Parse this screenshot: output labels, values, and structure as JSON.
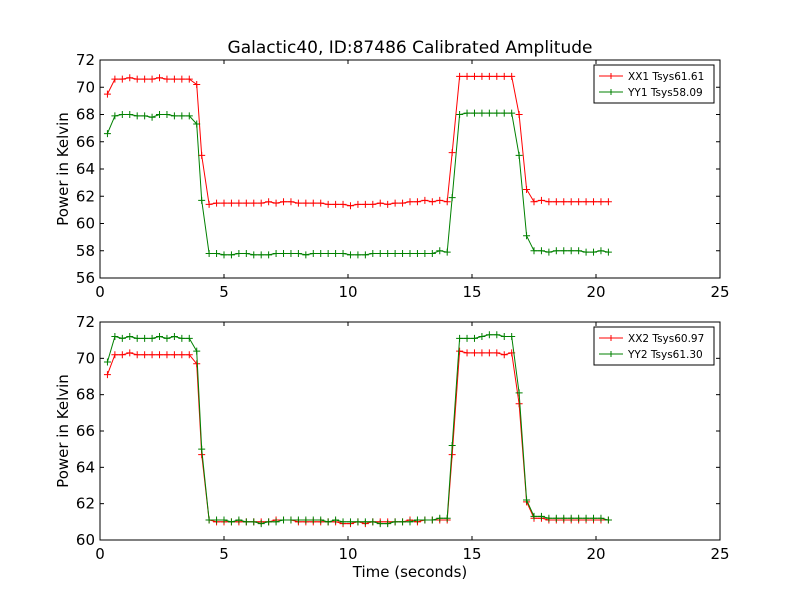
{
  "figure": {
    "title": "Galactic40, ID:87486 Calibrated Amplitude"
  },
  "chart_data": [
    {
      "type": "line",
      "title": "Galactic40, ID:87486 Calibrated Amplitude",
      "xlabel": "",
      "ylabel": "Power in Kelvin",
      "xlim": [
        0,
        25
      ],
      "ylim": [
        56,
        72
      ],
      "xticks": [
        "0",
        "5",
        "10",
        "15",
        "20",
        "25"
      ],
      "yticks": [
        "56",
        "58",
        "60",
        "62",
        "64",
        "66",
        "68",
        "70",
        "72"
      ],
      "grid": false,
      "legend_position": "top-right",
      "x": [
        0.3,
        0.6,
        0.9,
        1.2,
        1.5,
        1.8,
        2.1,
        2.4,
        2.7,
        3.0,
        3.3,
        3.6,
        3.9,
        4.1,
        4.4,
        4.7,
        5.0,
        5.3,
        5.6,
        5.9,
        6.2,
        6.5,
        6.8,
        7.1,
        7.4,
        7.7,
        8.0,
        8.3,
        8.6,
        8.9,
        9.2,
        9.5,
        9.8,
        10.1,
        10.4,
        10.7,
        11.0,
        11.3,
        11.6,
        11.9,
        12.2,
        12.5,
        12.8,
        13.1,
        13.4,
        13.7,
        14.0,
        14.2,
        14.5,
        14.8,
        15.1,
        15.4,
        15.7,
        16.0,
        16.3,
        16.6,
        16.9,
        17.2,
        17.5,
        17.8,
        18.1,
        18.4,
        18.7,
        19.0,
        19.3,
        19.6,
        19.9,
        20.2,
        20.5
      ],
      "series": [
        {
          "name": "XX1 Tsys61.61",
          "color": "#ff0000",
          "values": [
            69.5,
            70.6,
            70.6,
            70.7,
            70.6,
            70.6,
            70.6,
            70.7,
            70.6,
            70.6,
            70.6,
            70.6,
            70.2,
            65.0,
            61.4,
            61.5,
            61.5,
            61.5,
            61.5,
            61.5,
            61.5,
            61.5,
            61.6,
            61.5,
            61.6,
            61.6,
            61.5,
            61.5,
            61.5,
            61.5,
            61.4,
            61.4,
            61.4,
            61.3,
            61.4,
            61.4,
            61.4,
            61.5,
            61.4,
            61.5,
            61.5,
            61.6,
            61.6,
            61.7,
            61.6,
            61.7,
            61.6,
            65.2,
            70.8,
            70.8,
            70.8,
            70.8,
            70.8,
            70.8,
            70.8,
            70.8,
            68.0,
            62.5,
            61.6,
            61.7,
            61.6,
            61.6,
            61.6,
            61.6,
            61.6,
            61.6,
            61.6,
            61.6,
            61.6
          ]
        },
        {
          "name": "YY1 Tsys58.09",
          "color": "#008000",
          "values": [
            66.6,
            67.9,
            68.0,
            68.0,
            67.9,
            67.9,
            67.8,
            68.0,
            68.0,
            67.9,
            67.9,
            67.9,
            67.3,
            61.7,
            57.8,
            57.8,
            57.7,
            57.7,
            57.8,
            57.8,
            57.7,
            57.7,
            57.7,
            57.8,
            57.8,
            57.8,
            57.8,
            57.7,
            57.8,
            57.8,
            57.8,
            57.8,
            57.8,
            57.7,
            57.7,
            57.7,
            57.8,
            57.8,
            57.8,
            57.8,
            57.8,
            57.8,
            57.8,
            57.8,
            57.8,
            58.0,
            57.9,
            61.9,
            68.0,
            68.1,
            68.1,
            68.1,
            68.1,
            68.1,
            68.1,
            68.1,
            65.0,
            59.1,
            58.0,
            58.0,
            57.9,
            58.0,
            58.0,
            58.0,
            58.0,
            57.9,
            57.9,
            58.0,
            57.9
          ]
        }
      ]
    },
    {
      "type": "line",
      "title": "",
      "xlabel": "Time (seconds)",
      "ylabel": "Power in Kelvin",
      "xlim": [
        0,
        25
      ],
      "ylim": [
        60,
        72
      ],
      "xticks": [
        "0",
        "5",
        "10",
        "15",
        "20",
        "25"
      ],
      "yticks": [
        "60",
        "62",
        "64",
        "66",
        "68",
        "70",
        "72"
      ],
      "grid": false,
      "legend_position": "top-right",
      "x": [
        0.3,
        0.6,
        0.9,
        1.2,
        1.5,
        1.8,
        2.1,
        2.4,
        2.7,
        3.0,
        3.3,
        3.6,
        3.9,
        4.1,
        4.4,
        4.7,
        5.0,
        5.3,
        5.6,
        5.9,
        6.2,
        6.5,
        6.8,
        7.1,
        7.4,
        7.7,
        8.0,
        8.3,
        8.6,
        8.9,
        9.2,
        9.5,
        9.8,
        10.1,
        10.4,
        10.7,
        11.0,
        11.3,
        11.6,
        11.9,
        12.2,
        12.5,
        12.8,
        13.1,
        13.4,
        13.7,
        14.0,
        14.2,
        14.5,
        14.8,
        15.1,
        15.4,
        15.7,
        16.0,
        16.3,
        16.6,
        16.9,
        17.2,
        17.5,
        17.8,
        18.1,
        18.4,
        18.7,
        19.0,
        19.3,
        19.6,
        19.9,
        20.2,
        20.5
      ],
      "series": [
        {
          "name": "XX2 Tsys60.97",
          "color": "#ff0000",
          "values": [
            69.1,
            70.2,
            70.2,
            70.3,
            70.2,
            70.2,
            70.2,
            70.2,
            70.2,
            70.2,
            70.2,
            70.2,
            69.7,
            64.7,
            61.1,
            61.0,
            61.0,
            61.0,
            61.0,
            61.0,
            61.0,
            61.0,
            61.0,
            61.1,
            61.1,
            61.1,
            61.0,
            61.0,
            61.0,
            61.0,
            61.0,
            61.0,
            60.9,
            60.9,
            61.0,
            60.9,
            61.0,
            61.0,
            61.0,
            61.0,
            61.0,
            61.1,
            61.0,
            61.1,
            61.1,
            61.1,
            61.1,
            64.7,
            70.4,
            70.3,
            70.3,
            70.3,
            70.3,
            70.3,
            70.2,
            70.3,
            67.5,
            62.1,
            61.2,
            61.2,
            61.1,
            61.1,
            61.1,
            61.1,
            61.1,
            61.1,
            61.1,
            61.1,
            61.1
          ]
        },
        {
          "name": "YY2 Tsys61.30",
          "color": "#008000",
          "values": [
            69.8,
            71.2,
            71.1,
            71.2,
            71.1,
            71.1,
            71.1,
            71.2,
            71.1,
            71.2,
            71.1,
            71.1,
            70.4,
            65.0,
            61.1,
            61.1,
            61.1,
            61.0,
            61.1,
            61.0,
            61.0,
            60.9,
            61.0,
            61.0,
            61.1,
            61.1,
            61.1,
            61.1,
            61.1,
            61.1,
            61.0,
            61.1,
            61.0,
            61.0,
            61.0,
            61.0,
            61.0,
            60.9,
            60.9,
            61.0,
            61.0,
            61.0,
            61.1,
            61.1,
            61.1,
            61.2,
            61.2,
            65.2,
            71.1,
            71.1,
            71.1,
            71.2,
            71.3,
            71.3,
            71.2,
            71.2,
            68.1,
            62.2,
            61.3,
            61.3,
            61.2,
            61.2,
            61.2,
            61.2,
            61.2,
            61.2,
            61.2,
            61.2,
            61.1
          ]
        }
      ]
    }
  ]
}
